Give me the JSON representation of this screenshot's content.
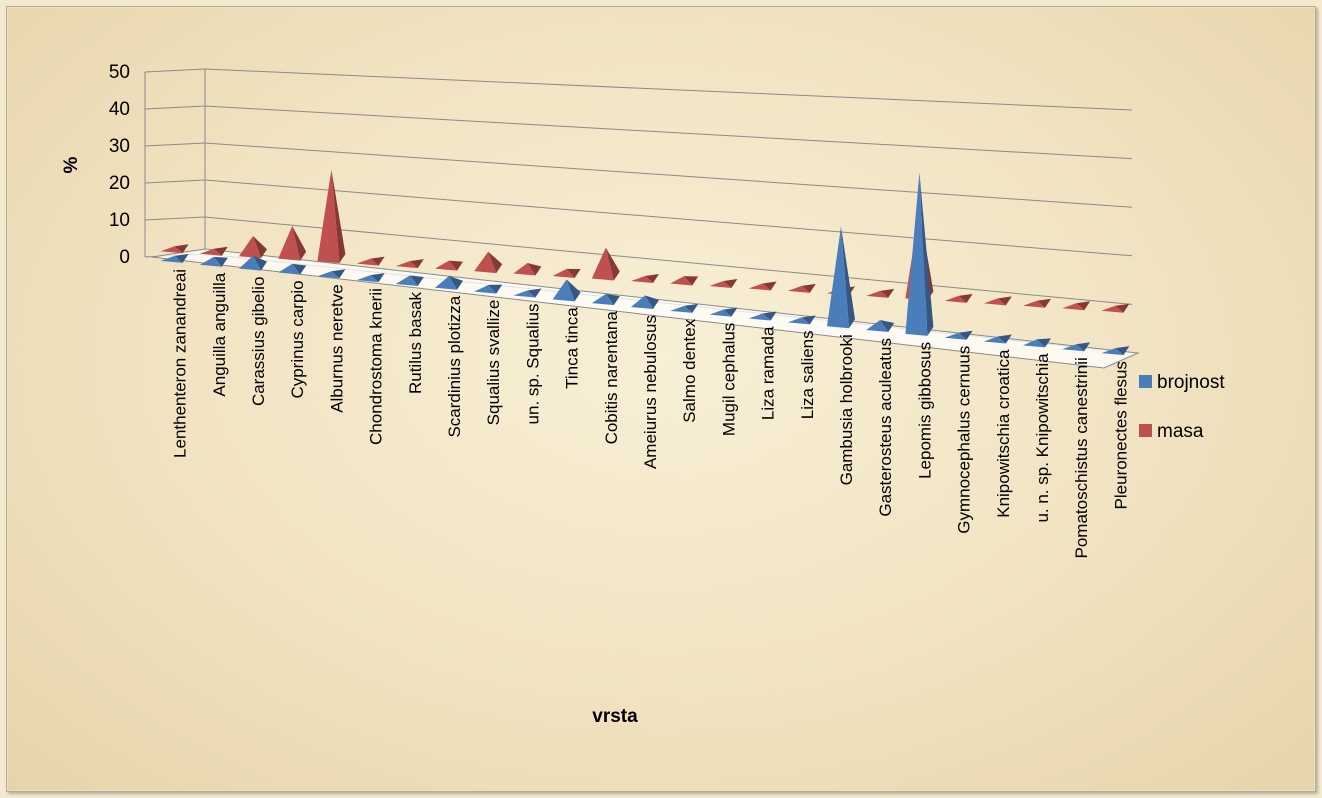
{
  "chart_data": {
    "type": "bar",
    "style": "3d-pyramid",
    "title": "",
    "xlabel": "vrsta",
    "ylabel": "%",
    "ylim": [
      0,
      50
    ],
    "yticks": [
      0,
      10,
      20,
      30,
      40,
      50
    ],
    "grid": true,
    "legend_position": "right",
    "categories": [
      "Lenthenteron zanandreai",
      "Anguilla anguilla",
      "Carassius gibelio",
      "Cyprinus carpio",
      "Alburnus neretve",
      "Chondrostoma knerii",
      "Rutilus basak",
      "Scardinius plotizza",
      "Squalius svallize",
      "un. sp. Squalius",
      "Tinca tinca",
      "Cobitis narentana",
      "Ameiurus nebulosus",
      "Salmo dentex",
      "Mugil cephalus",
      "Liza ramada",
      "Liza saliens",
      "Gambusia holbrooki",
      "Gasterosteus aculeatus",
      "Lepomis gibbosus",
      "Gymnocephalus cernuus",
      "Knipowitschia croatica",
      "u. n. sp. Knipowitschia",
      "Pomatoschistus canestrinii",
      "Pleuronectes flesus"
    ],
    "series": [
      {
        "name": "brojnost",
        "color": "#4a7ebb",
        "values": [
          0.1,
          1.6,
          3.0,
          1.8,
          0.7,
          0.2,
          1.8,
          2.7,
          1.3,
          0.5,
          5.0,
          2.0,
          2.7,
          0.6,
          0.5,
          0.3,
          0.4,
          28.0,
          2.3,
          46.0,
          0.6,
          0.9,
          1.2,
          0.8,
          0.4
        ]
      },
      {
        "name": "masa",
        "color": "#c0504d",
        "values": [
          0.2,
          0.6,
          5.0,
          8.5,
          25.0,
          0.6,
          0.7,
          1.7,
          5.0,
          2.5,
          1.5,
          8.5,
          0.3,
          1.6,
          0.8,
          0.8,
          0.6,
          0.9,
          0.5,
          27.0,
          0.5,
          0.7,
          0.8,
          0.6,
          0.5
        ]
      }
    ]
  }
}
